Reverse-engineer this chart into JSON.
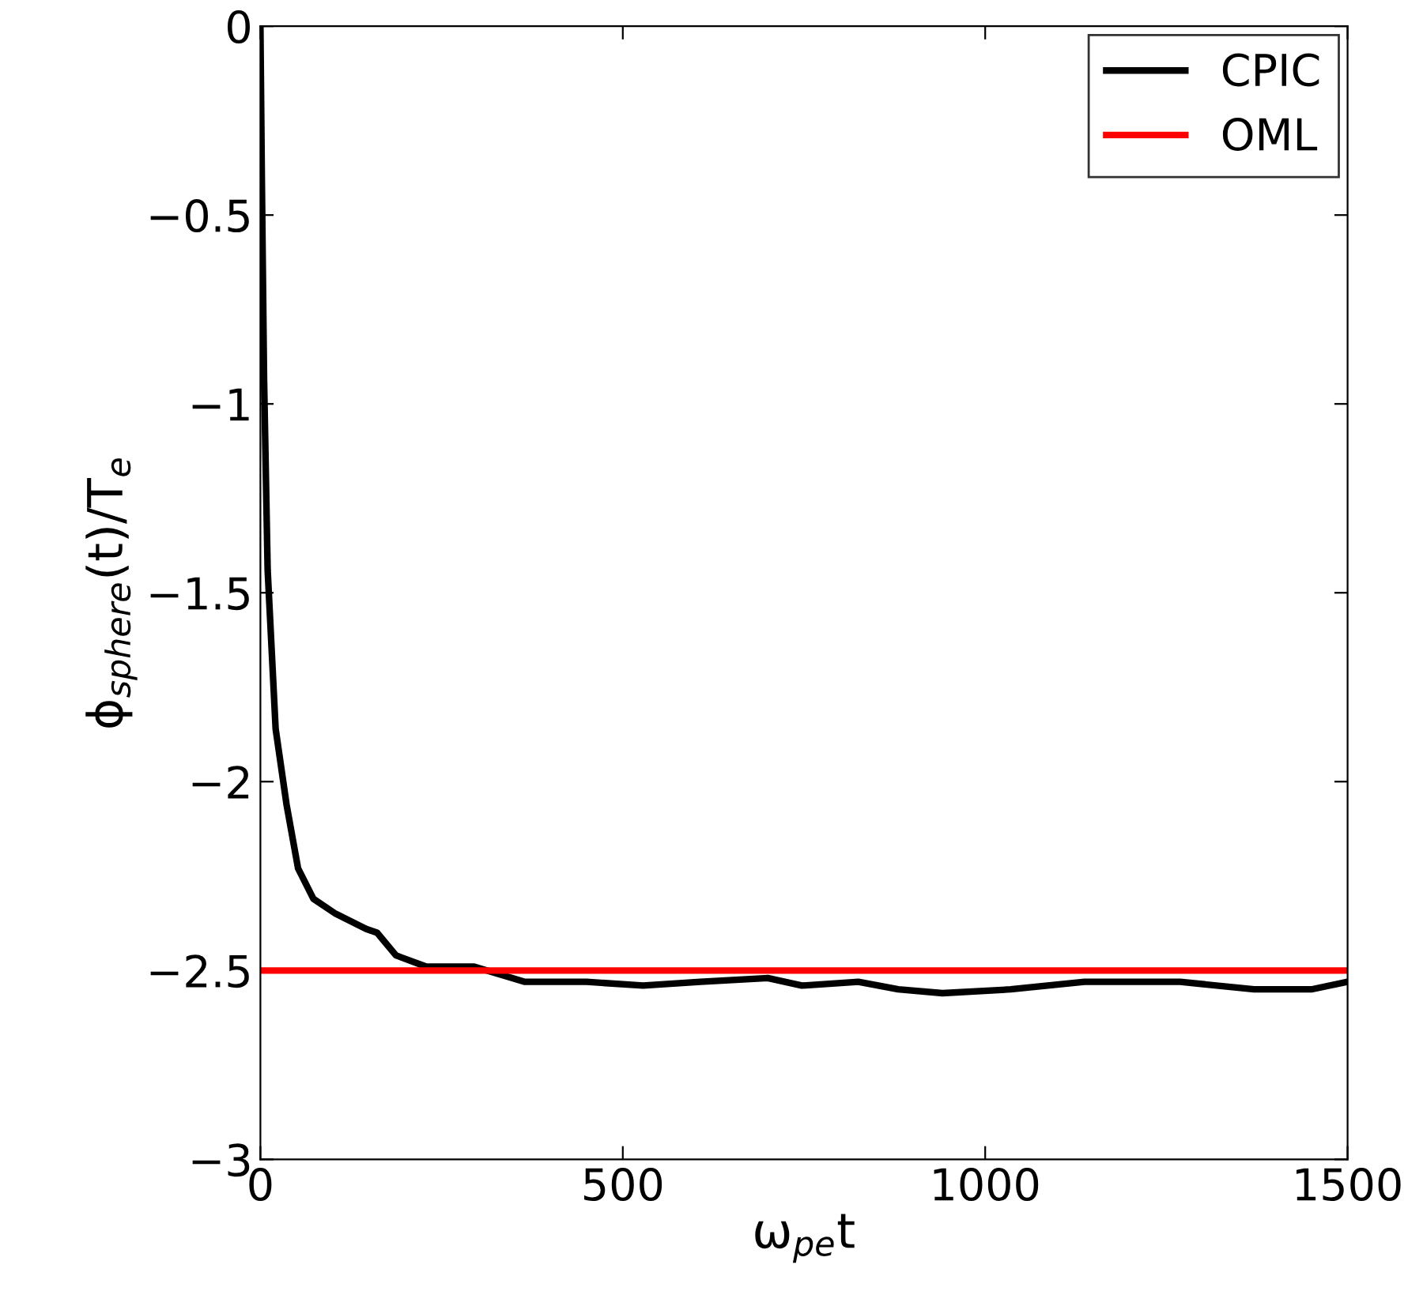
{
  "chart_data": {
    "type": "line",
    "xlabel": "ω$_{pe}$t",
    "ylabel": "ϕ$_{sphere}$(t)/T$_{e}$",
    "xlim": [
      0,
      1500
    ],
    "ylim": [
      -3,
      0
    ],
    "xticks": [
      0,
      500,
      1000,
      1500
    ],
    "yticks": [
      {
        "value": -3,
        "label": "−3"
      },
      {
        "value": -2.5,
        "label": "−2.5"
      },
      {
        "value": -2,
        "label": "−2"
      },
      {
        "value": -1.5,
        "label": "−1.5"
      },
      {
        "value": -1,
        "label": "−1"
      },
      {
        "value": -0.5,
        "label": "−0.5"
      },
      0
    ],
    "grid": false,
    "legend": "top right",
    "marker": "none",
    "line_style": "solid",
    "series": [
      {
        "name": "CPIC",
        "color": "#000000",
        "x": [
          0,
          2,
          5,
          10,
          21,
          36,
          52,
          73,
          104,
          146,
          161,
          187,
          229,
          295,
          365,
          450,
          528,
          607,
          700,
          747,
          825,
          880,
          941,
          1035,
          1137,
          1269,
          1371,
          1450,
          1500
        ],
        "values": [
          0,
          -0.41,
          -0.93,
          -1.44,
          -1.86,
          -2.06,
          -2.23,
          -2.31,
          -2.35,
          -2.39,
          -2.4,
          -2.46,
          -2.49,
          -2.49,
          -2.53,
          -2.53,
          -2.54,
          -2.53,
          -2.52,
          -2.54,
          -2.53,
          -2.55,
          -2.56,
          -2.55,
          -2.53,
          -2.53,
          -2.55,
          -2.55,
          -2.53
        ]
      },
      {
        "name": "OML",
        "color": "#ff0000",
        "x": [
          0,
          1500
        ],
        "values": [
          -2.5,
          -2.5
        ]
      }
    ]
  }
}
